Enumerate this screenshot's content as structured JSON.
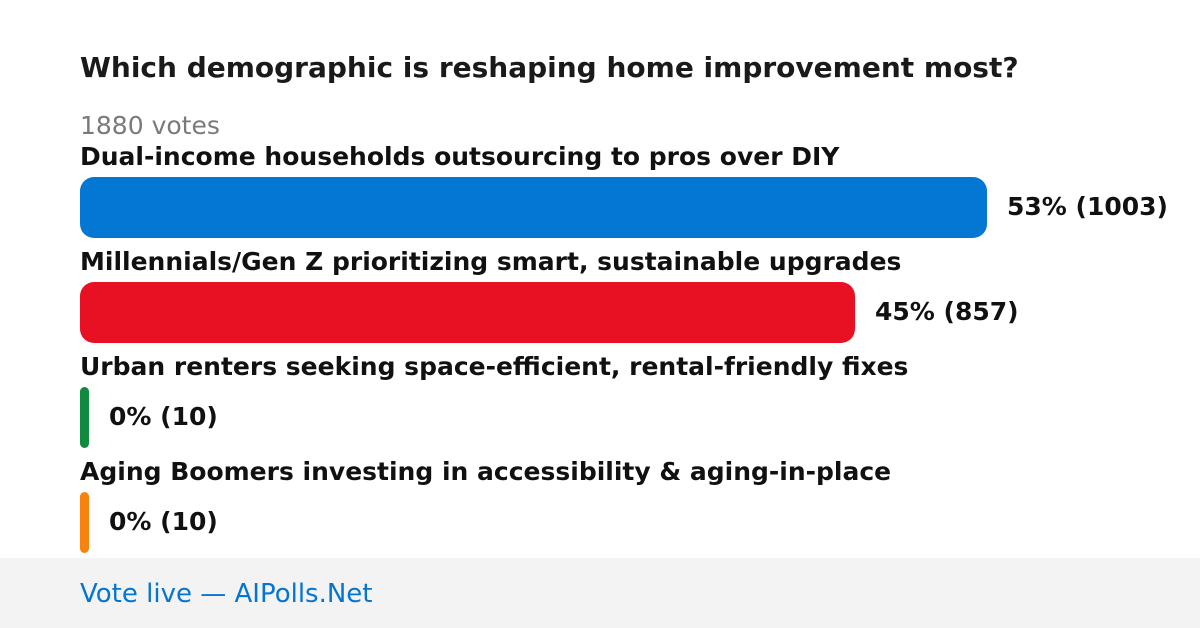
{
  "poll": {
    "question": "Which demographic is reshaping home improvement most?",
    "votes_label": "1880 votes"
  },
  "chart_data": {
    "type": "bar",
    "orientation": "horizontal",
    "title": "Which demographic is reshaping home improvement most?",
    "total_votes": 1880,
    "categories": [
      "Dual-income households outsourcing to pros over DIY",
      "Millennials/Gen Z prioritizing smart, sustainable upgrades",
      "Urban renters seeking space-efficient, rental-friendly fixes",
      "Aging Boomers investing in accessibility & aging-in-place"
    ],
    "values": [
      1003,
      857,
      10,
      10
    ],
    "percents": [
      53,
      45,
      0,
      0
    ],
    "value_labels": [
      "53% (1003)",
      "45% (857)",
      "0% (10)",
      "0% (10)"
    ],
    "colors": [
      "#0477d4",
      "#e81123",
      "#108a3e",
      "#f7830e"
    ],
    "xlabel": "",
    "ylabel": "",
    "grid": false,
    "legend": "none"
  },
  "footer": {
    "link_text": "Vote live — AIPolls.Net"
  }
}
